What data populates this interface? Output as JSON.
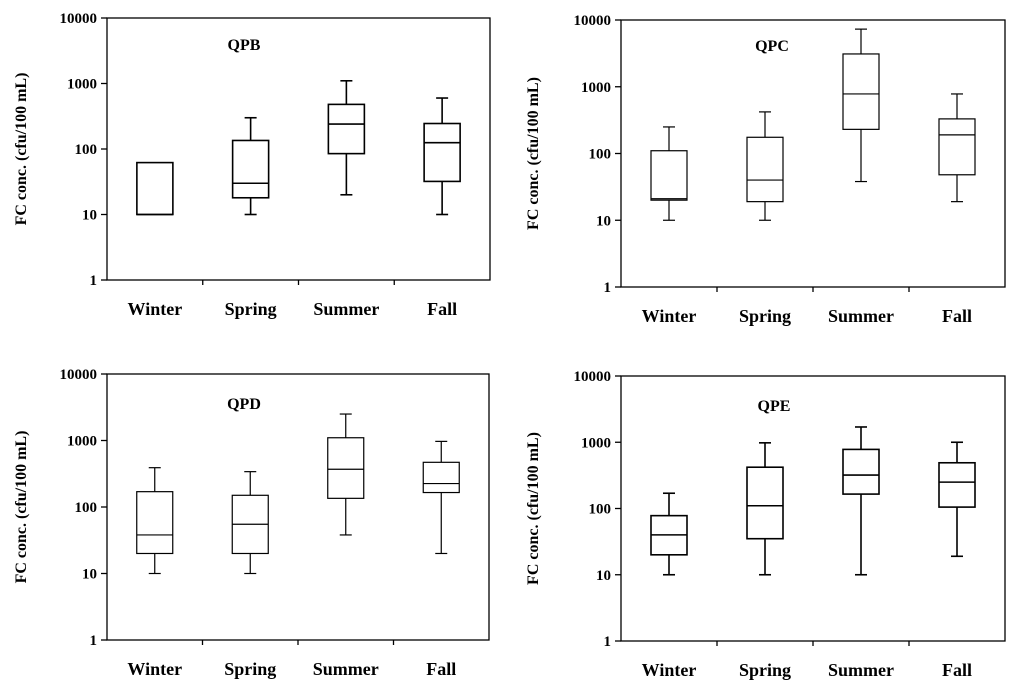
{
  "chart_data": [
    {
      "type": "box",
      "title": "QPB",
      "ylabel": "FC conc. (cfu/100 mL)",
      "yscale": "log",
      "ylim": [
        1,
        10000
      ],
      "yticks": [
        "1",
        "10",
        "100",
        "1000",
        "10000"
      ],
      "categories": [
        "Winter",
        "Spring",
        "Summer",
        "Fall"
      ],
      "boxes": [
        {
          "min": 10,
          "q1": 10,
          "median": 10,
          "q3": 62,
          "max": 62
        },
        {
          "min": 10,
          "q1": 18,
          "median": 30,
          "q3": 135,
          "max": 300
        },
        {
          "min": 20,
          "q1": 85,
          "median": 240,
          "q3": 480,
          "max": 1100
        },
        {
          "min": 10,
          "q1": 32,
          "median": 125,
          "q3": 245,
          "max": 600
        }
      ]
    },
    {
      "type": "box",
      "title": "QPC",
      "ylabel": "FC conc. (cfu/100 mL)",
      "yscale": "log",
      "ylim": [
        1,
        10000
      ],
      "yticks": [
        "1",
        "10",
        "100",
        "1000",
        "10000"
      ],
      "categories": [
        "Winter",
        "Spring",
        "Summer",
        "Fall"
      ],
      "boxes": [
        {
          "min": 10,
          "q1": 20,
          "median": 21,
          "q3": 110,
          "max": 250
        },
        {
          "min": 10,
          "q1": 19,
          "median": 40,
          "q3": 175,
          "max": 420
        },
        {
          "min": 38,
          "q1": 230,
          "median": 780,
          "q3": 3100,
          "max": 7300
        },
        {
          "min": 19,
          "q1": 48,
          "median": 190,
          "q3": 330,
          "max": 780
        }
      ]
    },
    {
      "type": "box",
      "title": "QPD",
      "ylabel": "FC conc. (cfu/100 mL)",
      "yscale": "log",
      "ylim": [
        1,
        10000
      ],
      "yticks": [
        "1",
        "10",
        "100",
        "1000",
        "10000"
      ],
      "categories": [
        "Winter",
        "Spring",
        "Summer",
        "Fall"
      ],
      "boxes": [
        {
          "min": 10,
          "q1": 20,
          "median": 38,
          "q3": 170,
          "max": 390
        },
        {
          "min": 10,
          "q1": 20,
          "median": 55,
          "q3": 150,
          "max": 340
        },
        {
          "min": 38,
          "q1": 135,
          "median": 370,
          "q3": 1100,
          "max": 2500
        },
        {
          "min": 20,
          "q1": 165,
          "median": 225,
          "q3": 470,
          "max": 970
        }
      ]
    },
    {
      "type": "box",
      "title": "QPE",
      "ylabel": "FC conc. (cfu/100 mL)",
      "yscale": "log",
      "ylim": [
        1,
        10000
      ],
      "yticks": [
        "1",
        "10",
        "100",
        "1000",
        "10000"
      ],
      "categories": [
        "Winter",
        "Spring",
        "Summer",
        "Fall"
      ],
      "boxes": [
        {
          "min": 10,
          "q1": 20,
          "median": 40,
          "q3": 78,
          "max": 170
        },
        {
          "min": 10,
          "q1": 35,
          "median": 110,
          "q3": 420,
          "max": 980
        },
        {
          "min": 10,
          "q1": 165,
          "median": 320,
          "q3": 780,
          "max": 1700
        },
        {
          "min": 19,
          "q1": 105,
          "median": 250,
          "q3": 490,
          "max": 1000
        }
      ]
    }
  ]
}
